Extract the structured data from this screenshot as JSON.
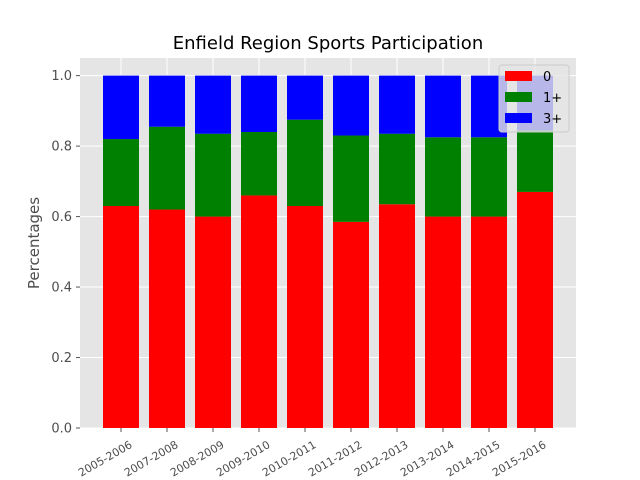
{
  "chart_data": {
    "type": "bar",
    "stacked": true,
    "title": "Enfield Region Sports Participation",
    "xlabel": "",
    "ylabel": "Percentages",
    "ylim": [
      0,
      1.05
    ],
    "yticks": [
      "0.0",
      "0.2",
      "0.4",
      "0.6",
      "0.8",
      "1.0"
    ],
    "grid": true,
    "legend_position": "top-right",
    "categories": [
      "2005-2006",
      "2007-2008",
      "2008-2009",
      "2009-2010",
      "2010-2011",
      "2011-2012",
      "2012-2013",
      "2013-2014",
      "2014-2015",
      "2015-2016"
    ],
    "series": [
      {
        "name": "0",
        "color": "#ff0000",
        "values": [
          0.63,
          0.62,
          0.6,
          0.66,
          0.63,
          0.585,
          0.635,
          0.6,
          0.6,
          0.67
        ]
      },
      {
        "name": "1+",
        "color": "#008000",
        "values": [
          0.19,
          0.235,
          0.235,
          0.18,
          0.245,
          0.245,
          0.2,
          0.225,
          0.225,
          0.175
        ]
      },
      {
        "name": "3+",
        "color": "#0000ff",
        "values": [
          0.18,
          0.145,
          0.165,
          0.16,
          0.125,
          0.17,
          0.165,
          0.175,
          0.175,
          0.155
        ]
      }
    ]
  }
}
